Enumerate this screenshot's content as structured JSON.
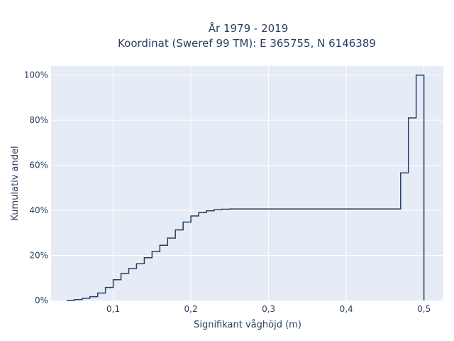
{
  "chart_data": {
    "type": "line",
    "subtype": "cumulative-step",
    "title_line1": "År 1979 - 2019",
    "title_line2": "Koordinat (Sweref 99 TM): E 365755, N 6146389",
    "xlabel": "Signifikant våghöjd (m)",
    "ylabel": "Kumulativ andel",
    "xlim": [
      0.02,
      0.525
    ],
    "ylim": [
      0,
      1.04
    ],
    "x_ticks": [
      {
        "value": 0.1,
        "label": "0,1"
      },
      {
        "value": 0.2,
        "label": "0,2"
      },
      {
        "value": 0.3,
        "label": "0,3"
      },
      {
        "value": 0.4,
        "label": "0,4"
      },
      {
        "value": 0.5,
        "label": "0,5"
      }
    ],
    "y_ticks": [
      {
        "value": 0,
        "label": "0%"
      },
      {
        "value": 0.2,
        "label": "20%"
      },
      {
        "value": 0.4,
        "label": "40%"
      },
      {
        "value": 0.6,
        "label": "60%"
      },
      {
        "value": 0.8,
        "label": "80%"
      },
      {
        "value": 1.0,
        "label": "100%"
      }
    ],
    "grid": true,
    "line_color": "#2a3f5f",
    "plot_bg": "#e5ecf6",
    "x": [
      0.04,
      0.05,
      0.06,
      0.07,
      0.08,
      0.09,
      0.1,
      0.11,
      0.12,
      0.13,
      0.14,
      0.15,
      0.16,
      0.17,
      0.18,
      0.19,
      0.2,
      0.21,
      0.22,
      0.23,
      0.24,
      0.25,
      0.26,
      0.47,
      0.48,
      0.49,
      0.5
    ],
    "y": [
      0.0,
      0.004,
      0.01,
      0.017,
      0.033,
      0.058,
      0.092,
      0.12,
      0.142,
      0.163,
      0.19,
      0.217,
      0.245,
      0.277,
      0.313,
      0.348,
      0.375,
      0.39,
      0.398,
      0.403,
      0.405,
      0.406,
      0.406,
      0.566,
      0.81,
      1.0,
      0.0
    ]
  }
}
